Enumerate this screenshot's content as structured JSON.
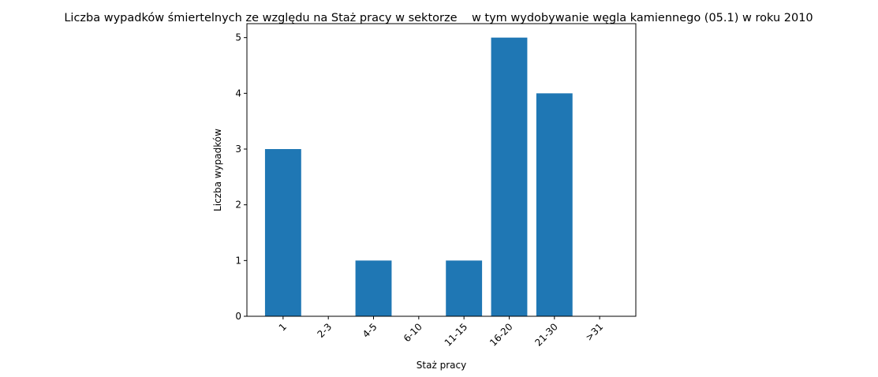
{
  "chart_data": {
    "type": "bar",
    "title": "Liczba wypadków śmiertelnych ze względu na Staż pracy w sektorze    w tym wydobywanie węgla kamiennego (05.1) w roku 2010",
    "xlabel": "Staż pracy",
    "ylabel": "Liczba wypadków",
    "categories": [
      "1",
      "2-3",
      "4-5",
      "6-10",
      "11-15",
      "16-20",
      "21-30",
      ">31"
    ],
    "values": [
      3,
      0,
      1,
      0,
      1,
      5,
      4,
      0
    ],
    "ylim": [
      0,
      5.25
    ],
    "yticks": [
      0,
      1,
      2,
      3,
      4,
      5
    ],
    "bar_color": "#1f77b4",
    "grid": false,
    "x_tick_rotation": 45
  }
}
